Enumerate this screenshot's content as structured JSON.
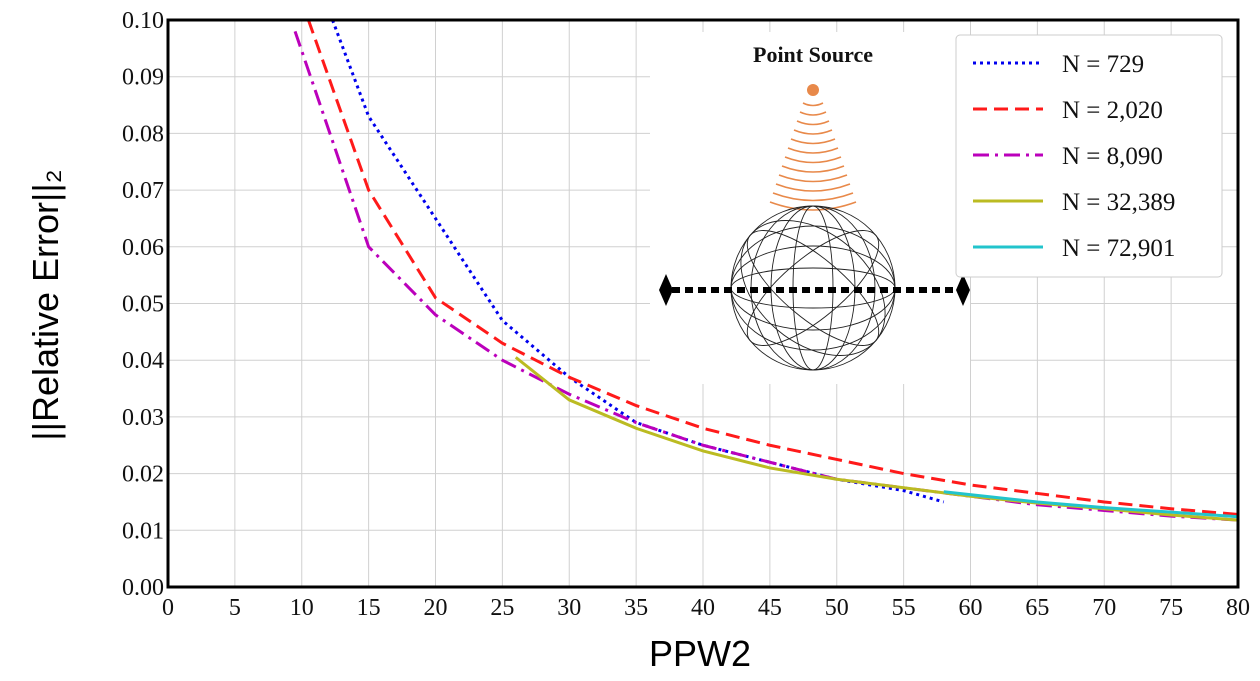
{
  "chart_data": {
    "type": "line",
    "xlabel": "PPW2",
    "ylabel": "||Relative Error||₂",
    "annotation": "Point Source",
    "xlim": [
      0,
      80
    ],
    "xticks": [
      0,
      5,
      10,
      15,
      20,
      25,
      30,
      35,
      40,
      45,
      50,
      55,
      60,
      65,
      70,
      75,
      80
    ],
    "ylim": [
      0,
      0.1
    ],
    "yticks": [
      {
        "value": 0,
        "label": "0.00"
      },
      0.01,
      0.02,
      0.03,
      0.04,
      0.05,
      0.06,
      0.07,
      0.08,
      0.09,
      {
        "value": 0.1,
        "label": "0.10"
      }
    ],
    "grid": true,
    "legend": "upper right",
    "series": [
      {
        "name": "N = 729",
        "color": "#0000ee",
        "linestyle": "dotted",
        "x": [
          12.3,
          15,
          20,
          25,
          30,
          35,
          40,
          45,
          50,
          55,
          58
        ],
        "values": [
          0.1,
          0.083,
          0.065,
          0.047,
          0.037,
          0.029,
          0.025,
          0.022,
          0.019,
          0.017,
          0.015
        ]
      },
      {
        "name": "N = 2,020",
        "color": "#ff1a1a",
        "linestyle": "dashed",
        "x": [
          10.5,
          15,
          20,
          25,
          30,
          35,
          40,
          45,
          50,
          55,
          60,
          65,
          70,
          75,
          80
        ],
        "values": [
          0.1,
          0.07,
          0.051,
          0.043,
          0.037,
          0.032,
          0.028,
          0.025,
          0.0225,
          0.02,
          0.018,
          0.0165,
          0.015,
          0.0138,
          0.0128
        ]
      },
      {
        "name": "N = 8,090",
        "color": "#bb00bb",
        "linestyle": "dashdot",
        "x": [
          9.5,
          15,
          20,
          25,
          30,
          35,
          40,
          45,
          50,
          55,
          60,
          65,
          70,
          75,
          80
        ],
        "values": [
          0.098,
          0.06,
          0.048,
          0.04,
          0.034,
          0.029,
          0.025,
          0.022,
          0.019,
          0.0175,
          0.016,
          0.0145,
          0.0135,
          0.0125,
          0.0118
        ]
      },
      {
        "name": "N = 32,389",
        "color": "#bbbb22",
        "linestyle": "solid",
        "x": [
          26,
          30,
          35,
          40,
          45,
          50,
          55,
          60,
          65,
          70,
          75,
          80
        ],
        "values": [
          0.0405,
          0.033,
          0.028,
          0.024,
          0.021,
          0.019,
          0.0175,
          0.016,
          0.0148,
          0.0138,
          0.0127,
          0.0118
        ]
      },
      {
        "name": "N = 72,901",
        "color": "#22c4cc",
        "linestyle": "solid",
        "x": [
          58,
          65,
          70,
          75,
          80
        ],
        "values": [
          0.0168,
          0.015,
          0.014,
          0.0132,
          0.0124
        ]
      }
    ]
  }
}
